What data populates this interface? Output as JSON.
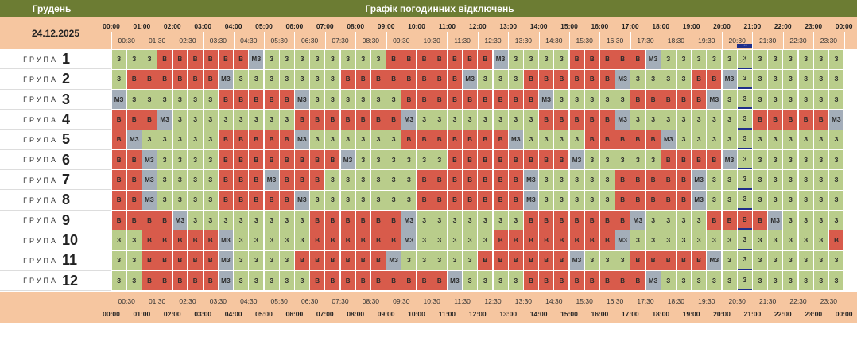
{
  "header": {
    "month": "Грудень",
    "title": "Графік погодинних відключень",
    "date": "24.12.2025"
  },
  "times": {
    "hours": [
      "00:00",
      "01:00",
      "02:00",
      "03:00",
      "04:00",
      "05:00",
      "06:00",
      "07:00",
      "08:00",
      "09:00",
      "10:00",
      "11:00",
      "12:00",
      "13:00",
      "14:00",
      "15:00",
      "16:00",
      "17:00",
      "18:00",
      "19:00",
      "20:00",
      "21:00",
      "22:00",
      "23:00",
      "00:00"
    ],
    "halves": [
      "00:30",
      "01:30",
      "02:30",
      "03:30",
      "04:30",
      "05:30",
      "06:30",
      "07:30",
      "08:30",
      "09:30",
      "10:30",
      "11:30",
      "12:30",
      "13:30",
      "14:30",
      "15:30",
      "16:30",
      "17:30",
      "18:30",
      "19:30",
      "20:30",
      "21:30",
      "22:30",
      "23:30"
    ]
  },
  "groups": [
    {
      "label": "ГРУПА",
      "number": "1",
      "cells": [
        "З",
        "З",
        "З",
        "В",
        "В",
        "В",
        "В",
        "В",
        "В",
        "МЗ",
        "З",
        "З",
        "З",
        "З",
        "З",
        "З",
        "З",
        "З",
        "В",
        "В",
        "В",
        "В",
        "В",
        "В",
        "В",
        "МЗ",
        "З",
        "З",
        "З",
        "З",
        "В",
        "В",
        "В",
        "В",
        "В",
        "МЗ",
        "З",
        "З",
        "З",
        "З",
        "З",
        "З",
        "З",
        "З",
        "З",
        "З",
        "З",
        "З"
      ]
    },
    {
      "label": "ГРУПА",
      "number": "2",
      "cells": [
        "З",
        "В",
        "В",
        "В",
        "В",
        "В",
        "В",
        "МЗ",
        "З",
        "З",
        "З",
        "З",
        "З",
        "З",
        "З",
        "В",
        "В",
        "В",
        "В",
        "В",
        "В",
        "В",
        "В",
        "МЗ",
        "З",
        "З",
        "З",
        "В",
        "В",
        "В",
        "В",
        "В",
        "В",
        "МЗ",
        "З",
        "З",
        "З",
        "З",
        "В",
        "В",
        "МЗ",
        "З",
        "З",
        "З",
        "З",
        "З",
        "З",
        "З"
      ]
    },
    {
      "label": "ГРУПА",
      "number": "3",
      "cells": [
        "МЗ",
        "З",
        "З",
        "З",
        "З",
        "З",
        "З",
        "В",
        "В",
        "В",
        "В",
        "В",
        "МЗ",
        "З",
        "З",
        "З",
        "З",
        "З",
        "З",
        "В",
        "В",
        "В",
        "В",
        "В",
        "В",
        "В",
        "В",
        "В",
        "МЗ",
        "З",
        "З",
        "З",
        "З",
        "З",
        "В",
        "В",
        "В",
        "В",
        "В",
        "МЗ",
        "З",
        "З",
        "З",
        "З",
        "З",
        "З",
        "З",
        "З"
      ]
    },
    {
      "label": "ГРУПА",
      "number": "4",
      "cells": [
        "В",
        "В",
        "В",
        "МЗ",
        "З",
        "З",
        "З",
        "З",
        "З",
        "З",
        "З",
        "З",
        "В",
        "В",
        "В",
        "В",
        "В",
        "В",
        "В",
        "МЗ",
        "З",
        "З",
        "З",
        "З",
        "З",
        "З",
        "З",
        "З",
        "В",
        "В",
        "В",
        "В",
        "В",
        "МЗ",
        "З",
        "З",
        "З",
        "З",
        "З",
        "З",
        "З",
        "З",
        "В",
        "В",
        "В",
        "В",
        "В",
        "МЗ"
      ]
    },
    {
      "label": "ГРУПА",
      "number": "5",
      "cells": [
        "В",
        "МЗ",
        "З",
        "З",
        "З",
        "З",
        "З",
        "В",
        "В",
        "В",
        "В",
        "В",
        "МЗ",
        "З",
        "З",
        "З",
        "З",
        "З",
        "З",
        "В",
        "В",
        "В",
        "В",
        "В",
        "В",
        "В",
        "МЗ",
        "З",
        "З",
        "З",
        "З",
        "В",
        "В",
        "В",
        "В",
        "В",
        "МЗ",
        "З",
        "З",
        "З",
        "З",
        "З",
        "З",
        "З",
        "З",
        "З",
        "З",
        "З"
      ]
    },
    {
      "label": "ГРУПА",
      "number": "6",
      "cells": [
        "В",
        "В",
        "МЗ",
        "З",
        "З",
        "З",
        "З",
        "В",
        "В",
        "В",
        "В",
        "В",
        "В",
        "В",
        "В",
        "МЗ",
        "З",
        "З",
        "З",
        "З",
        "З",
        "З",
        "В",
        "В",
        "В",
        "В",
        "В",
        "В",
        "В",
        "В",
        "МЗ",
        "З",
        "З",
        "З",
        "З",
        "З",
        "В",
        "В",
        "В",
        "В",
        "МЗ",
        "З",
        "З",
        "З",
        "З",
        "З",
        "З",
        "З"
      ]
    },
    {
      "label": "ГРУПА",
      "number": "7",
      "cells": [
        "В",
        "В",
        "МЗ",
        "З",
        "З",
        "З",
        "З",
        "В",
        "В",
        "В",
        "МЗ",
        "В",
        "В",
        "В",
        "З",
        "З",
        "З",
        "З",
        "З",
        "З",
        "В",
        "В",
        "В",
        "В",
        "В",
        "В",
        "В",
        "МЗ",
        "З",
        "З",
        "З",
        "З",
        "З",
        "В",
        "В",
        "В",
        "В",
        "В",
        "МЗ",
        "З",
        "З",
        "З",
        "З",
        "З",
        "З",
        "З",
        "З",
        "З"
      ]
    },
    {
      "label": "ГРУПА",
      "number": "8",
      "cells": [
        "В",
        "В",
        "МЗ",
        "З",
        "З",
        "З",
        "З",
        "В",
        "В",
        "В",
        "В",
        "В",
        "МЗ",
        "З",
        "З",
        "З",
        "З",
        "З",
        "З",
        "З",
        "В",
        "В",
        "В",
        "В",
        "В",
        "В",
        "В",
        "МЗ",
        "З",
        "З",
        "З",
        "З",
        "З",
        "В",
        "В",
        "В",
        "В",
        "В",
        "МЗ",
        "З",
        "З",
        "З",
        "З",
        "З",
        "З",
        "З",
        "З",
        "З"
      ]
    },
    {
      "label": "ГРУПА",
      "number": "9",
      "cells": [
        "В",
        "В",
        "В",
        "В",
        "МЗ",
        "З",
        "З",
        "З",
        "З",
        "З",
        "З",
        "З",
        "З",
        "В",
        "В",
        "В",
        "В",
        "В",
        "В",
        "МЗ",
        "З",
        "З",
        "З",
        "З",
        "З",
        "З",
        "З",
        "В",
        "В",
        "В",
        "В",
        "В",
        "В",
        "В",
        "МЗ",
        "З",
        "З",
        "З",
        "З",
        "В",
        "В",
        "В",
        "В",
        "МЗ",
        "З",
        "З",
        "З",
        "З"
      ]
    },
    {
      "label": "ГРУПА",
      "number": "10",
      "cells": [
        "З",
        "З",
        "В",
        "В",
        "В",
        "В",
        "В",
        "МЗ",
        "З",
        "З",
        "З",
        "З",
        "З",
        "В",
        "В",
        "В",
        "В",
        "В",
        "В",
        "МЗ",
        "З",
        "З",
        "З",
        "З",
        "З",
        "В",
        "В",
        "В",
        "В",
        "В",
        "В",
        "В",
        "В",
        "МЗ",
        "З",
        "З",
        "З",
        "З",
        "З",
        "З",
        "З",
        "З",
        "З",
        "З",
        "З",
        "З",
        "З",
        "В"
      ]
    },
    {
      "label": "ГРУПА",
      "number": "11",
      "cells": [
        "З",
        "З",
        "В",
        "В",
        "В",
        "В",
        "В",
        "МЗ",
        "З",
        "З",
        "З",
        "З",
        "В",
        "В",
        "В",
        "В",
        "В",
        "В",
        "МЗ",
        "З",
        "З",
        "З",
        "З",
        "З",
        "В",
        "В",
        "В",
        "В",
        "В",
        "В",
        "МЗ",
        "З",
        "З",
        "З",
        "В",
        "В",
        "В",
        "В",
        "В",
        "МЗ",
        "З",
        "З",
        "З",
        "З",
        "З",
        "З",
        "З",
        "З"
      ]
    },
    {
      "label": "ГРУПА",
      "number": "12",
      "cells": [
        "З",
        "З",
        "В",
        "В",
        "В",
        "В",
        "В",
        "МЗ",
        "З",
        "З",
        "З",
        "З",
        "З",
        "В",
        "В",
        "В",
        "В",
        "В",
        "В",
        "В",
        "В",
        "В",
        "МЗ",
        "З",
        "З",
        "З",
        "З",
        "В",
        "В",
        "В",
        "В",
        "В",
        "В",
        "В",
        "В",
        "МЗ",
        "З",
        "З",
        "З",
        "З",
        "З",
        "З",
        "З",
        "З",
        "З",
        "З",
        "З",
        "З"
      ]
    }
  ]
}
